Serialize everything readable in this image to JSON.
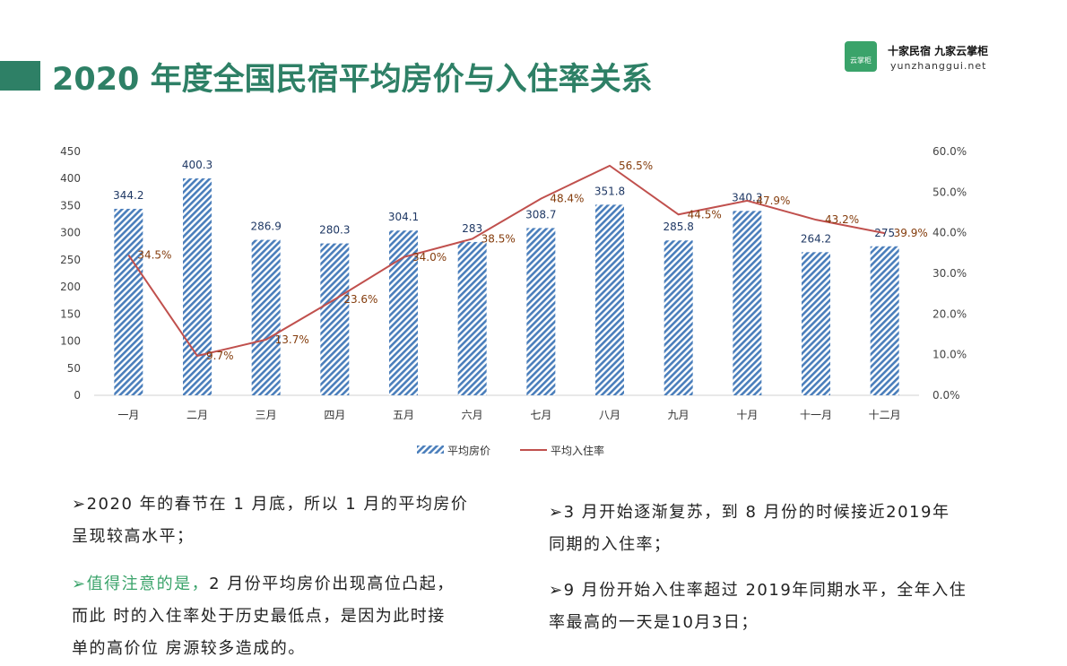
{
  "header": {
    "title": "2020 年度全国民宿平均房价与入住率关系",
    "logo_icon": "云掌柜",
    "logo_slogan": "十家民宿 九家云掌柜",
    "logo_url": "yunzhanggui.net"
  },
  "chart_data": {
    "type": "bar",
    "categories": [
      "一月",
      "二月",
      "三月",
      "四月",
      "五月",
      "六月",
      "七月",
      "八月",
      "九月",
      "十月",
      "十一月",
      "十二月"
    ],
    "series": [
      {
        "name": "平均房价",
        "type": "bar",
        "color": "#4a7ebb",
        "values": [
          344.2,
          400.3,
          286.9,
          280.3,
          304.1,
          283,
          308.7,
          351.8,
          285.8,
          340.3,
          264.2,
          275
        ]
      },
      {
        "name": "平均入住率",
        "type": "line",
        "axis": "y2",
        "color": "#c0504d",
        "values": [
          34.5,
          9.7,
          13.7,
          23.6,
          34.0,
          38.5,
          48.4,
          56.5,
          44.5,
          47.9,
          43.2,
          39.9
        ],
        "value_labels": [
          "34.5%",
          "9.7%",
          "13.7%",
          "23.6%",
          "34.0%",
          "38.5%",
          "48.4%",
          "56.5%",
          "44.5%",
          "47.9%",
          "43.2%",
          "39.9%"
        ]
      }
    ],
    "ylim": [
      0,
      450
    ],
    "yticks": [
      0,
      50,
      100,
      150,
      200,
      250,
      300,
      350,
      400,
      450
    ],
    "y2lim": [
      0,
      60
    ],
    "y2ticks": [
      {
        "value": 0,
        "label": "0.0%"
      },
      {
        "value": 10,
        "label": "10.0%"
      },
      {
        "value": 20,
        "label": "20.0%"
      },
      {
        "value": 30,
        "label": "30.0%"
      },
      {
        "value": 40,
        "label": "40.0%"
      },
      {
        "value": 50,
        "label": "50.0%"
      },
      {
        "value": 60,
        "label": "60.0%"
      }
    ],
    "legend": "bottom"
  },
  "notes": {
    "left": [
      {
        "lines": [
          "➢2020 年的春节在 1 月底，所以 1 月的平均房价",
          "呈现较高水平；"
        ]
      },
      {
        "highlight": "➢值得注意的是，",
        "lines": [
          "2 月份平均房价出现高位凸起，",
          "而此 时的入住率处于历史最低点，是因为此时接",
          "单的高价位 房源较多造成的。"
        ]
      }
    ],
    "right": [
      {
        "lines": [
          "➢3 月开始逐渐复苏，到 8 月份的时候接近2019年",
          "同期的入住率；"
        ]
      },
      {
        "lines": [
          "➢9 月份开始入住率超过 2019年同期水平，全年入住",
          "率最高的一天是10月3日；"
        ]
      }
    ]
  }
}
